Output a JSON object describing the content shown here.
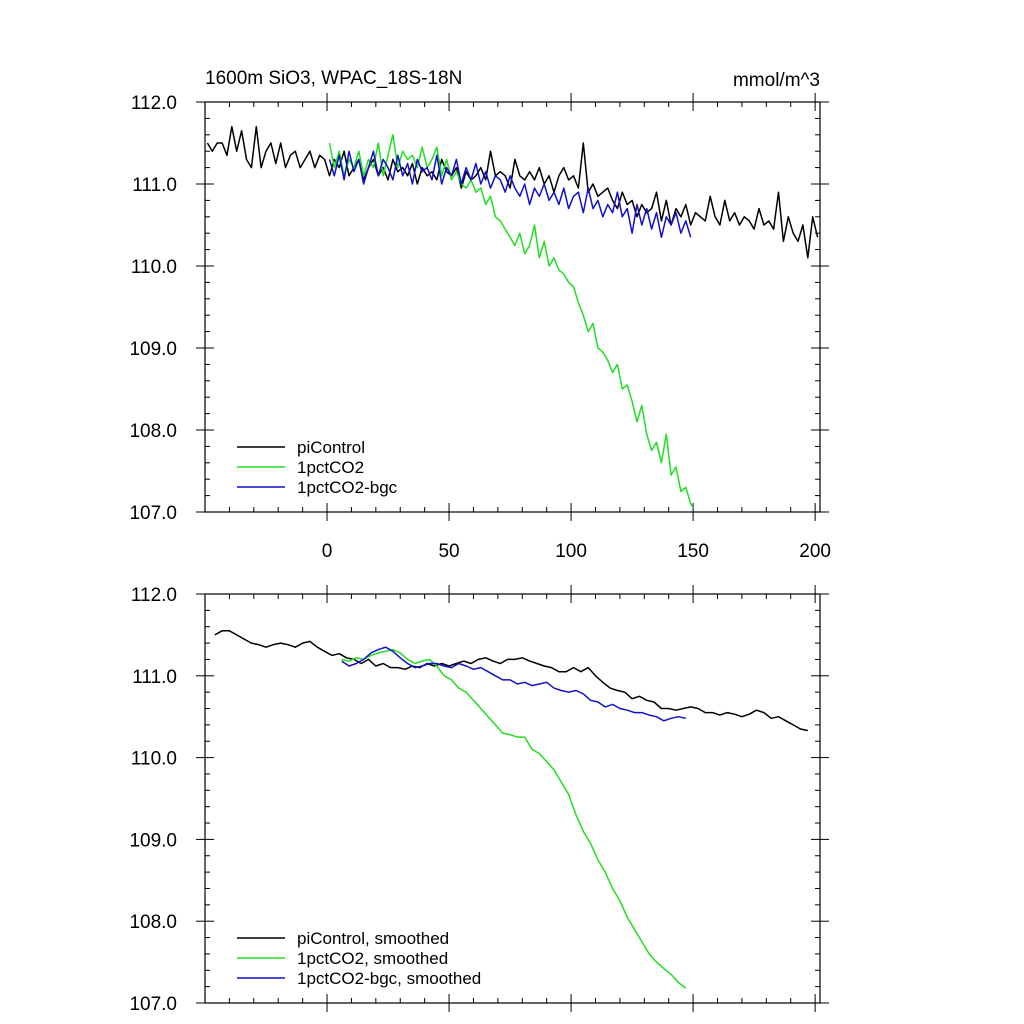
{
  "title": "1600m SiO3, WPAC_18S-18N",
  "units": "mmol/m^3",
  "colors": {
    "piControl": "#000000",
    "1pctCO2": "#22dd22",
    "1pctCO2-bgc": "#1111cc"
  },
  "chart_data": [
    {
      "type": "line",
      "title": "1600m SiO3, WPAC_18S-18N",
      "units_label": "mmol/m^3",
      "xlim": [
        -50,
        202
      ],
      "ylim": [
        107.0,
        112.0
      ],
      "xticks": [
        0,
        50,
        100,
        150,
        200
      ],
      "xtick_labels": [
        "0",
        "50",
        "100",
        "150",
        "200"
      ],
      "yticks": [
        107.0,
        108.0,
        109.0,
        110.0,
        111.0,
        112.0
      ],
      "ytick_labels": [
        "107.0",
        "108.0",
        "109.0",
        "110.0",
        "111.0",
        "112.0"
      ],
      "legend_position": "bottom-left",
      "series": [
        {
          "name": "piControl",
          "color": "#000000",
          "x": [
            -49,
            -47,
            -45,
            -43,
            -41,
            -39,
            -37,
            -35,
            -33,
            -31,
            -29,
            -27,
            -25,
            -23,
            -21,
            -19,
            -17,
            -15,
            -13,
            -11,
            -9,
            -7,
            -5,
            -3,
            -1,
            1,
            3,
            5,
            7,
            9,
            11,
            13,
            15,
            17,
            19,
            21,
            23,
            25,
            27,
            29,
            31,
            33,
            35,
            37,
            39,
            41,
            43,
            45,
            47,
            49,
            51,
            53,
            55,
            57,
            59,
            61,
            63,
            65,
            67,
            69,
            71,
            73,
            75,
            77,
            79,
            81,
            83,
            85,
            87,
            89,
            91,
            93,
            95,
            97,
            99,
            101,
            103,
            105,
            107,
            109,
            111,
            113,
            115,
            117,
            119,
            121,
            123,
            125,
            127,
            129,
            131,
            133,
            135,
            137,
            139,
            141,
            143,
            145,
            147,
            149,
            151,
            153,
            155,
            157,
            159,
            161,
            163,
            165,
            167,
            169,
            171,
            173,
            175,
            177,
            179,
            181,
            183,
            185,
            187,
            189,
            191,
            193,
            195,
            197,
            199,
            201
          ],
          "y": [
            111.5,
            111.4,
            111.5,
            111.5,
            111.35,
            111.7,
            111.4,
            111.65,
            111.3,
            111.2,
            111.7,
            111.2,
            111.4,
            111.5,
            111.25,
            111.5,
            111.2,
            111.35,
            111.4,
            111.2,
            111.3,
            111.4,
            111.2,
            111.35,
            111.3,
            111.1,
            111.3,
            111.2,
            111.4,
            111.1,
            111.2,
            111.3,
            111.05,
            111.2,
            111.3,
            111.1,
            111.2,
            111.05,
            111.3,
            111.15,
            111.2,
            111.1,
            111.25,
            111.0,
            111.2,
            111.1,
            111.15,
            111.05,
            111.3,
            111.15,
            111.1,
            111.2,
            110.95,
            111.15,
            111.05,
            111.1,
            111.2,
            111.05,
            111.4,
            111.1,
            111.15,
            111.1,
            110.95,
            111.3,
            111.1,
            111.05,
            111.15,
            111.05,
            111.2,
            111.0,
            111.1,
            110.9,
            111.1,
            111.2,
            111.05,
            111.1,
            110.95,
            111.5,
            110.9,
            111.0,
            110.85,
            110.9,
            110.95,
            110.8,
            110.7,
            110.9,
            110.75,
            110.8,
            110.6,
            110.75,
            110.65,
            110.7,
            110.9,
            110.55,
            110.8,
            110.5,
            110.7,
            110.6,
            110.75,
            110.5,
            110.65,
            110.6,
            110.55,
            110.85,
            110.6,
            110.5,
            110.8,
            110.55,
            110.65,
            110.5,
            110.6,
            110.55,
            110.45,
            110.7,
            110.5,
            110.55,
            110.45,
            110.9,
            110.3,
            110.6,
            110.4,
            110.3,
            110.5,
            110.1,
            110.6,
            110.35
          ]
        },
        {
          "name": "1pctCO2",
          "color": "#22dd22",
          "x": [
            1,
            3,
            5,
            7,
            9,
            11,
            13,
            15,
            17,
            19,
            21,
            23,
            25,
            27,
            29,
            31,
            33,
            35,
            37,
            39,
            41,
            43,
            45,
            47,
            49,
            51,
            53,
            55,
            57,
            59,
            61,
            63,
            65,
            67,
            69,
            71,
            73,
            75,
            77,
            79,
            81,
            83,
            85,
            87,
            89,
            91,
            93,
            95,
            97,
            99,
            101,
            103,
            105,
            107,
            109,
            111,
            113,
            115,
            117,
            119,
            121,
            123,
            125,
            127,
            129,
            131,
            133,
            135,
            137,
            139,
            141,
            143,
            145,
            147,
            149,
            150
          ],
          "y": [
            111.5,
            111.2,
            111.4,
            111.1,
            111.3,
            111.2,
            111.4,
            111.1,
            111.3,
            111.2,
            111.5,
            111.1,
            111.35,
            111.6,
            111.2,
            111.4,
            111.3,
            111.35,
            111.2,
            111.45,
            111.2,
            111.3,
            111.45,
            111.1,
            111.3,
            111.05,
            111.15,
            111.0,
            110.95,
            111.05,
            110.9,
            110.95,
            110.75,
            110.85,
            110.6,
            110.55,
            110.45,
            110.35,
            110.25,
            110.4,
            110.15,
            110.25,
            110.5,
            110.1,
            110.3,
            110.0,
            110.1,
            109.95,
            109.9,
            109.8,
            109.75,
            109.55,
            109.4,
            109.2,
            109.3,
            109.0,
            108.95,
            108.85,
            108.7,
            108.8,
            108.5,
            108.55,
            108.35,
            108.1,
            108.3,
            107.95,
            107.75,
            107.85,
            107.6,
            107.95,
            107.45,
            107.55,
            107.25,
            107.3,
            107.1,
            107.05
          ]
        },
        {
          "name": "1pctCO2-bgc",
          "color": "#1111cc",
          "x": [
            1,
            3,
            5,
            7,
            9,
            11,
            13,
            15,
            17,
            19,
            21,
            23,
            25,
            27,
            29,
            31,
            33,
            35,
            37,
            39,
            41,
            43,
            45,
            47,
            49,
            51,
            53,
            55,
            57,
            59,
            61,
            63,
            65,
            67,
            69,
            71,
            73,
            75,
            77,
            79,
            81,
            83,
            85,
            87,
            89,
            91,
            93,
            95,
            97,
            99,
            101,
            103,
            105,
            107,
            109,
            111,
            113,
            115,
            117,
            119,
            121,
            123,
            125,
            127,
            129,
            131,
            133,
            135,
            137,
            139,
            141,
            143,
            145,
            147,
            149
          ],
          "y": [
            111.3,
            111.1,
            111.35,
            111.05,
            111.4,
            111.15,
            111.3,
            111.0,
            111.2,
            111.4,
            111.1,
            111.3,
            111.2,
            111.05,
            111.35,
            111.1,
            111.25,
            111.0,
            111.3,
            111.15,
            111.2,
            111.05,
            111.35,
            111.0,
            111.2,
            111.1,
            111.3,
            111.0,
            111.2,
            111.05,
            111.25,
            111.0,
            111.15,
            110.95,
            111.1,
            111.05,
            110.9,
            111.1,
            110.95,
            110.85,
            111.0,
            110.75,
            110.95,
            110.85,
            111.0,
            110.8,
            110.9,
            110.75,
            110.95,
            110.7,
            110.85,
            110.9,
            110.65,
            110.95,
            110.7,
            110.8,
            110.6,
            110.75,
            110.65,
            110.9,
            110.6,
            110.7,
            110.4,
            110.75,
            110.5,
            110.7,
            110.45,
            110.65,
            110.35,
            110.6,
            110.5,
            110.65,
            110.4,
            110.55,
            110.35
          ]
        }
      ]
    },
    {
      "type": "line",
      "xlim": [
        -50,
        202
      ],
      "ylim": [
        107.0,
        112.0
      ],
      "xticks": [
        0,
        50,
        100,
        150,
        200
      ],
      "yticks": [
        107.0,
        108.0,
        109.0,
        110.0,
        111.0,
        112.0
      ],
      "ytick_labels": [
        "107.0",
        "108.0",
        "109.0",
        "110.0",
        "111.0",
        "112.0"
      ],
      "legend_position": "bottom-left",
      "series": [
        {
          "name": "piControl, smoothed",
          "color": "#000000",
          "x": [
            -46,
            -43,
            -40,
            -37,
            -34,
            -31,
            -28,
            -25,
            -22,
            -19,
            -16,
            -13,
            -10,
            -7,
            -4,
            -1,
            2,
            5,
            8,
            11,
            14,
            17,
            20,
            23,
            26,
            29,
            32,
            35,
            38,
            41,
            44,
            47,
            50,
            53,
            56,
            59,
            62,
            65,
            68,
            71,
            74,
            77,
            80,
            83,
            86,
            89,
            92,
            95,
            98,
            101,
            104,
            107,
            110,
            113,
            116,
            119,
            122,
            125,
            128,
            131,
            134,
            137,
            140,
            143,
            146,
            149,
            152,
            155,
            158,
            161,
            164,
            167,
            170,
            173,
            176,
            179,
            182,
            185,
            188,
            191,
            194,
            197
          ],
          "y": [
            111.5,
            111.55,
            111.55,
            111.5,
            111.45,
            111.4,
            111.38,
            111.35,
            111.38,
            111.4,
            111.38,
            111.35,
            111.4,
            111.42,
            111.35,
            111.3,
            111.25,
            111.27,
            111.22,
            111.2,
            111.15,
            111.2,
            111.12,
            111.15,
            111.1,
            111.1,
            111.08,
            111.12,
            111.1,
            111.15,
            111.12,
            111.15,
            111.12,
            111.15,
            111.18,
            111.15,
            111.2,
            111.22,
            111.18,
            111.15,
            111.2,
            111.2,
            111.22,
            111.18,
            111.15,
            111.12,
            111.1,
            111.05,
            111.05,
            111.1,
            111.05,
            111.1,
            111.0,
            110.92,
            110.85,
            110.82,
            110.8,
            110.72,
            110.75,
            110.7,
            110.68,
            110.6,
            110.6,
            110.58,
            110.6,
            110.62,
            110.6,
            110.55,
            110.55,
            110.52,
            110.55,
            110.53,
            110.5,
            110.53,
            110.58,
            110.55,
            110.48,
            110.5,
            110.45,
            110.4,
            110.35,
            110.33
          ]
        },
        {
          "name": "1pctCO2, smoothed",
          "color": "#22dd22",
          "x": [
            6,
            9,
            12,
            15,
            18,
            21,
            24,
            27,
            30,
            33,
            36,
            39,
            42,
            45,
            48,
            51,
            54,
            57,
            60,
            63,
            66,
            69,
            72,
            75,
            78,
            81,
            84,
            87,
            90,
            93,
            96,
            99,
            102,
            105,
            108,
            111,
            114,
            117,
            120,
            123,
            126,
            129,
            132,
            135,
            138,
            141,
            144,
            147
          ],
          "y": [
            111.2,
            111.18,
            111.22,
            111.2,
            111.25,
            111.28,
            111.3,
            111.32,
            111.28,
            111.2,
            111.15,
            111.18,
            111.2,
            111.12,
            111.0,
            110.95,
            110.85,
            110.8,
            110.7,
            110.6,
            110.5,
            110.4,
            110.3,
            110.28,
            110.25,
            110.25,
            110.1,
            110.05,
            109.95,
            109.85,
            109.7,
            109.55,
            109.3,
            109.1,
            108.95,
            108.75,
            108.6,
            108.4,
            108.25,
            108.05,
            107.9,
            107.75,
            107.6,
            107.5,
            107.42,
            107.35,
            107.25,
            107.18
          ]
        },
        {
          "name": "1pctCO2-bgc, smoothed",
          "color": "#1111cc",
          "x": [
            6,
            9,
            12,
            15,
            18,
            21,
            24,
            27,
            30,
            33,
            36,
            39,
            42,
            45,
            48,
            51,
            54,
            57,
            60,
            63,
            66,
            69,
            72,
            75,
            78,
            81,
            84,
            87,
            90,
            93,
            96,
            99,
            102,
            105,
            108,
            111,
            114,
            117,
            120,
            123,
            126,
            129,
            132,
            135,
            138,
            141,
            144,
            147
          ],
          "y": [
            111.18,
            111.12,
            111.15,
            111.2,
            111.28,
            111.32,
            111.35,
            111.3,
            111.22,
            111.15,
            111.1,
            111.12,
            111.15,
            111.15,
            111.12,
            111.1,
            111.15,
            111.12,
            111.08,
            111.1,
            111.05,
            111.0,
            110.95,
            110.95,
            110.9,
            110.92,
            110.88,
            110.9,
            110.92,
            110.85,
            110.82,
            110.8,
            110.82,
            110.78,
            110.7,
            110.68,
            110.62,
            110.65,
            110.6,
            110.58,
            110.55,
            110.55,
            110.52,
            110.5,
            110.45,
            110.48,
            110.5,
            110.48
          ]
        }
      ]
    }
  ]
}
